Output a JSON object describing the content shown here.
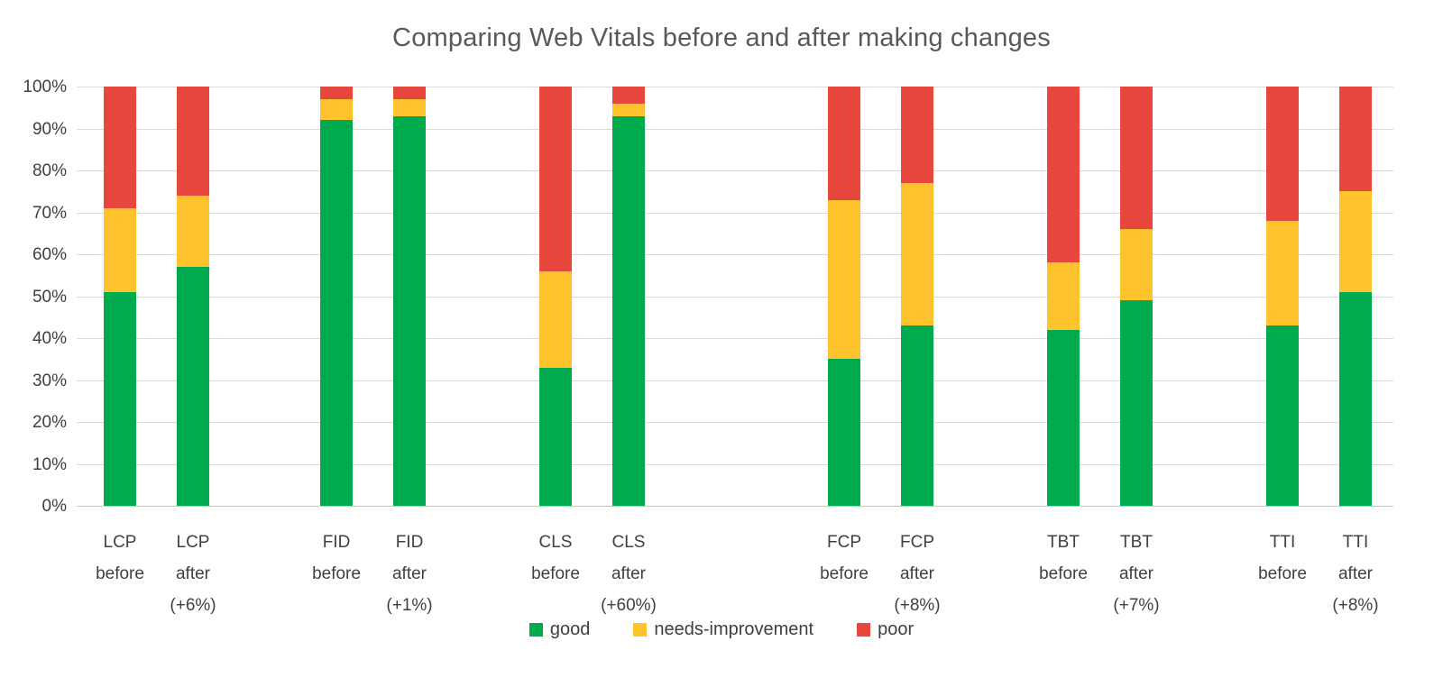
{
  "title": "Comparing Web Vitals before and after making changes",
  "chart_data": {
    "type": "bar",
    "stacked": true,
    "unit": "percent",
    "title": "Comparing Web Vitals before and after making changes",
    "ylim": [
      0,
      100
    ],
    "y_ticks": [
      "0%",
      "10%",
      "20%",
      "30%",
      "40%",
      "50%",
      "60%",
      "70%",
      "80%",
      "90%",
      "100%"
    ],
    "grid": "horizontal",
    "legend_position": "bottom-center",
    "legend": [
      {
        "name": "good",
        "color": "#00ab4e"
      },
      {
        "name": "needs-improvement",
        "color": "#ffc32e"
      },
      {
        "name": "poor",
        "color": "#e8473d"
      }
    ],
    "series_order": [
      "good",
      "needs_improvement",
      "poor"
    ],
    "bars": [
      {
        "id": "lcp-before",
        "label_lines": [
          "LCP",
          "before"
        ],
        "good": 51,
        "needs_improvement": 20,
        "poor": 29
      },
      {
        "id": "lcp-after",
        "label_lines": [
          "LCP",
          "after",
          "(+6%)"
        ],
        "good": 57,
        "needs_improvement": 17,
        "poor": 26
      },
      {
        "id": "fid-before",
        "label_lines": [
          "FID",
          "before"
        ],
        "good": 92,
        "needs_improvement": 5,
        "poor": 3
      },
      {
        "id": "fid-after",
        "label_lines": [
          "FID",
          "after",
          "(+1%)"
        ],
        "good": 93,
        "needs_improvement": 4,
        "poor": 3
      },
      {
        "id": "cls-before",
        "label_lines": [
          "CLS",
          "before"
        ],
        "good": 33,
        "needs_improvement": 23,
        "poor": 44
      },
      {
        "id": "cls-after",
        "label_lines": [
          "CLS",
          "after",
          "(+60%)"
        ],
        "good": 93,
        "needs_improvement": 3,
        "poor": 4
      },
      {
        "id": "fcp-before",
        "label_lines": [
          "FCP",
          "before"
        ],
        "good": 35,
        "needs_improvement": 38,
        "poor": 27
      },
      {
        "id": "fcp-after",
        "label_lines": [
          "FCP",
          "after",
          "(+8%)"
        ],
        "good": 43,
        "needs_improvement": 34,
        "poor": 23
      },
      {
        "id": "tbt-before",
        "label_lines": [
          "TBT",
          "before"
        ],
        "good": 42,
        "needs_improvement": 16,
        "poor": 42
      },
      {
        "id": "tbt-after",
        "label_lines": [
          "TBT",
          "after",
          "(+7%)"
        ],
        "good": 49,
        "needs_improvement": 17,
        "poor": 34
      },
      {
        "id": "tti-before",
        "label_lines": [
          "TTI",
          "before"
        ],
        "good": 43,
        "needs_improvement": 25,
        "poor": 32
      },
      {
        "id": "tti-after",
        "label_lines": [
          "TTI",
          "after",
          "(+8%)"
        ],
        "good": 51,
        "needs_improvement": 24,
        "poor": 25
      }
    ]
  }
}
